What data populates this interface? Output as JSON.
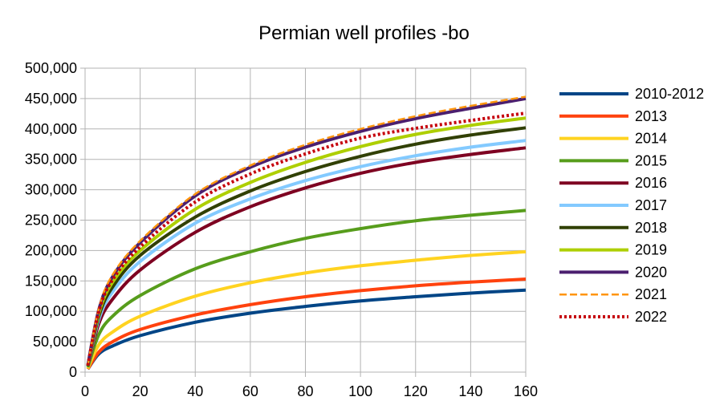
{
  "chart_data": {
    "type": "line",
    "title": "Permian well profiles -bo",
    "xlabel": "",
    "ylabel": "",
    "xlim": [
      0,
      160
    ],
    "ylim": [
      0,
      500000
    ],
    "x_ticks": [
      "0",
      "20",
      "40",
      "60",
      "80",
      "100",
      "120",
      "140",
      "160"
    ],
    "y_ticks": [
      "0",
      "50,000",
      "100,000",
      "150,000",
      "200,000",
      "250,000",
      "300,000",
      "350,000",
      "400,000",
      "450,000",
      "500,000"
    ],
    "grid": true,
    "legend_position": "right",
    "x": [
      1,
      5,
      10,
      20,
      40,
      60,
      80,
      100,
      120,
      140,
      160
    ],
    "series": [
      {
        "name": "2010-2012",
        "color": "#004586",
        "style": "solid",
        "values": [
          5000,
          30000,
          43000,
          60000,
          82000,
          97000,
          108000,
          117000,
          124000,
          130000,
          135000
        ]
      },
      {
        "name": "2013",
        "color": "#ff420e",
        "style": "solid",
        "values": [
          5000,
          33000,
          50000,
          70000,
          94000,
          111000,
          124000,
          134000,
          142000,
          148000,
          153000
        ]
      },
      {
        "name": "2014",
        "color": "#ffd320",
        "style": "solid",
        "values": [
          6000,
          45000,
          66000,
          92000,
          125000,
          147000,
          163000,
          175000,
          184000,
          192000,
          198000
        ]
      },
      {
        "name": "2015",
        "color": "#579d1c",
        "style": "solid",
        "values": [
          8000,
          62000,
          92000,
          126000,
          170000,
          198000,
          220000,
          236000,
          249000,
          258000,
          266000
        ]
      },
      {
        "name": "2016",
        "color": "#7e0021",
        "style": "solid",
        "values": [
          10000,
          80000,
          120000,
          168000,
          230000,
          272000,
          303000,
          327000,
          345000,
          358000,
          369000
        ]
      },
      {
        "name": "2017",
        "color": "#83caff",
        "style": "solid",
        "values": [
          10000,
          87000,
          132000,
          182000,
          245000,
          285000,
          315000,
          338000,
          356000,
          370000,
          381000
        ]
      },
      {
        "name": "2018",
        "color": "#314004",
        "style": "solid",
        "values": [
          10000,
          92000,
          140000,
          192000,
          255000,
          298000,
          330000,
          355000,
          375000,
          390000,
          402000
        ]
      },
      {
        "name": "2019",
        "color": "#aecf00",
        "style": "solid",
        "values": [
          11000,
          97000,
          148000,
          200000,
          268000,
          312000,
          345000,
          371000,
          391000,
          406000,
          418000
        ]
      },
      {
        "name": "2020",
        "color": "#4b1f6f",
        "style": "solid",
        "values": [
          11000,
          103000,
          157000,
          213000,
          290000,
          337000,
          370000,
          396000,
          417000,
          434000,
          450000
        ]
      },
      {
        "name": "2021",
        "color": "#ff950e",
        "style": "dashed",
        "values": [
          11000,
          105000,
          160000,
          216000,
          293000,
          340000,
          374000,
          400000,
          421000,
          438000,
          453000
        ]
      },
      {
        "name": "2022",
        "color": "#c5000b",
        "style": "dotted",
        "values": [
          11000,
          100000,
          152000,
          206000,
          280000,
          326000,
          359000,
          385000,
          401000,
          414000,
          426000
        ]
      }
    ]
  }
}
